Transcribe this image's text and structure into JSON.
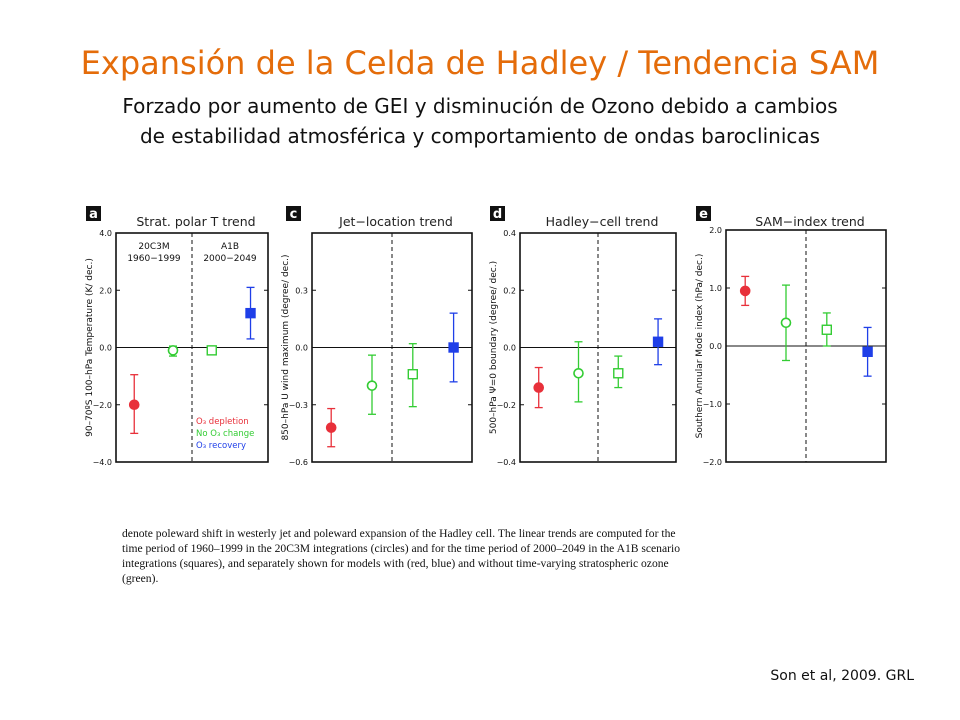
{
  "title": "Expansión de la Celda de Hadley / Tendencia SAM",
  "subtitle_line1": "Forzado por aumento de GEI y disminución de Ozono debido a cambios",
  "subtitle_line2": "de estabilidad atmosférica y comportamiento de ondas baroclinicas",
  "caption_lines": [
    "denote poleward shift in westerly jet and poleward expansion of the Hadley cell. The linear trends are computed for the",
    "time period of 1960–1999 in the 20C3M integrations (circles) and for the time period of 2000–2049 in the A1B scenario",
    "integrations (squares), and separately shown for models with (red, blue) and without time-varying stratospheric ozone",
    "(green)."
  ],
  "citation": "Son et al, 2009. GRL",
  "colors": {
    "red": "#e8303a",
    "green": "#33cc33",
    "blue": "#1f3fe8",
    "title": "#e46c0a"
  },
  "chart_data": [
    {
      "type": "scatter",
      "panel_letter": "a",
      "title": "Strat. polar T trend",
      "ylabel": "90–70ºS 100–hPa Temperature (K/ dec.)",
      "ylim": [
        -4.0,
        4.0
      ],
      "yticks": [
        "4.0",
        "2.0",
        "0.0",
        "−2.0",
        "−4.0"
      ],
      "ytick_values": [
        4,
        2,
        0,
        -2,
        -4
      ],
      "period_labels": [
        [
          "20C3M",
          "1960−1999"
        ],
        [
          "A1B",
          "2000−2049"
        ]
      ],
      "legend": [
        "O₃ depletion",
        "No O₃ change",
        "O₃ recovery"
      ],
      "series": [
        {
          "marker": "circle",
          "filled": true,
          "color": "red",
          "x": 1,
          "value": -2.0,
          "low": -3.0,
          "high": -0.95
        },
        {
          "marker": "circle",
          "filled": false,
          "color": "green",
          "x": 2,
          "value": -0.1,
          "low": -0.3,
          "high": 0.05
        },
        {
          "marker": "square",
          "filled": false,
          "color": "green",
          "x": 3,
          "value": -0.1,
          "low": -0.15,
          "high": -0.05
        },
        {
          "marker": "square",
          "filled": true,
          "color": "blue",
          "x": 4,
          "value": 1.2,
          "low": 0.3,
          "high": 2.1
        }
      ]
    },
    {
      "type": "scatter",
      "panel_letter": "c",
      "title": "Jet−location trend",
      "ylabel": "850–hPa U wind maximum (degree/ dec.)",
      "ylim": [
        -0.6,
        0.6
      ],
      "yticks": [
        "0.3",
        "0.0",
        "−0.3",
        "−0.6"
      ],
      "ytick_values": [
        0.3,
        0,
        -0.3,
        -0.6
      ],
      "series": [
        {
          "marker": "circle",
          "filled": true,
          "color": "red",
          "x": 1,
          "value": -0.42,
          "low": -0.52,
          "high": -0.32
        },
        {
          "marker": "circle",
          "filled": false,
          "color": "green",
          "x": 2,
          "value": -0.2,
          "low": -0.35,
          "high": -0.04
        },
        {
          "marker": "square",
          "filled": false,
          "color": "green",
          "x": 3,
          "value": -0.14,
          "low": -0.31,
          "high": 0.02
        },
        {
          "marker": "square",
          "filled": true,
          "color": "blue",
          "x": 4,
          "value": 0.0,
          "low": -0.18,
          "high": 0.18
        }
      ]
    },
    {
      "type": "scatter",
      "panel_letter": "d",
      "title": "Hadley−cell trend",
      "ylabel": "500–hPa Ψ=0 boundary (degree/ dec.)",
      "ylim": [
        -0.4,
        0.4
      ],
      "yticks": [
        "0.4",
        "0.2",
        "0.0",
        "−0.2",
        "−0.4"
      ],
      "ytick_values": [
        0.4,
        0.2,
        0,
        -0.2,
        -0.4
      ],
      "series": [
        {
          "marker": "circle",
          "filled": true,
          "color": "red",
          "x": 1,
          "value": -0.14,
          "low": -0.21,
          "high": -0.07
        },
        {
          "marker": "circle",
          "filled": false,
          "color": "green",
          "x": 2,
          "value": -0.09,
          "low": -0.19,
          "high": 0.02
        },
        {
          "marker": "square",
          "filled": false,
          "color": "green",
          "x": 3,
          "value": -0.09,
          "low": -0.14,
          "high": -0.03
        },
        {
          "marker": "square",
          "filled": true,
          "color": "blue",
          "x": 4,
          "value": 0.02,
          "low": -0.06,
          "high": 0.1
        }
      ]
    },
    {
      "type": "scatter",
      "panel_letter": "e",
      "title": "SAM−index trend",
      "ylabel": "Southern Annular Mode index (hPa/ dec.)",
      "ylim": [
        -2.0,
        2.0
      ],
      "yticks": [
        "2.0",
        "1.0",
        "0.0",
        "−1.0",
        "−2.0"
      ],
      "ytick_values": [
        2,
        1,
        0,
        -1,
        -2
      ],
      "series": [
        {
          "marker": "circle",
          "filled": true,
          "color": "red",
          "x": 1,
          "value": 0.95,
          "low": 0.7,
          "high": 1.2
        },
        {
          "marker": "circle",
          "filled": false,
          "color": "green",
          "x": 2,
          "value": 0.4,
          "low": -0.25,
          "high": 1.05
        },
        {
          "marker": "square",
          "filled": false,
          "color": "green",
          "x": 3,
          "value": 0.28,
          "low": 0.0,
          "high": 0.57
        },
        {
          "marker": "square",
          "filled": true,
          "color": "blue",
          "x": 4,
          "value": -0.1,
          "low": -0.52,
          "high": 0.32
        }
      ]
    }
  ]
}
